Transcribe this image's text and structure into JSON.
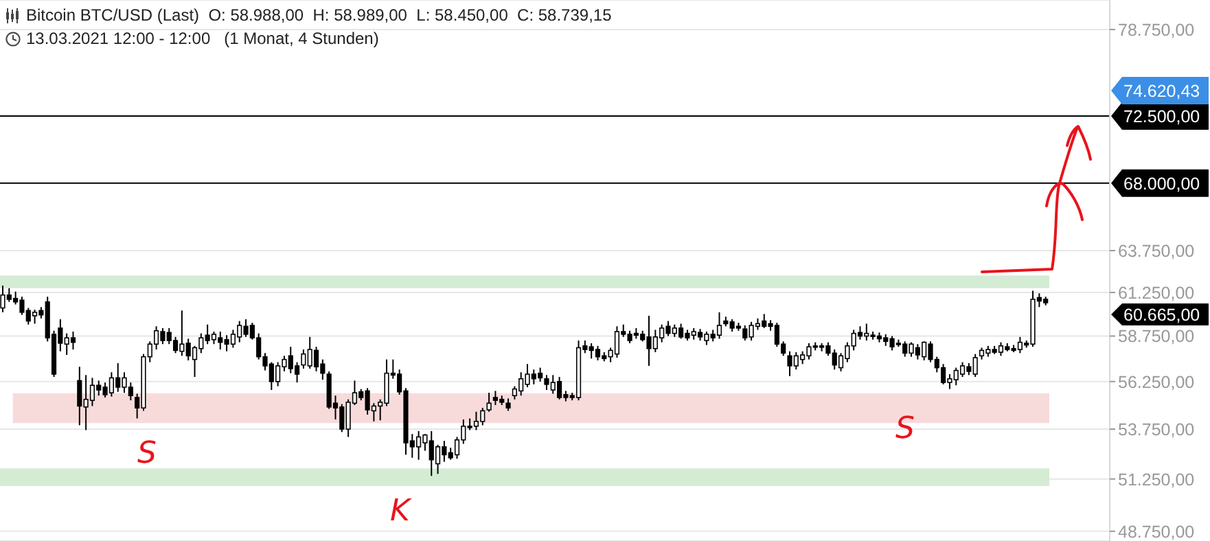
{
  "chart_data": {
    "type": "candlestick",
    "title": "Bitcoin BTC/USD (Last)  O: 58.988,00  H: 58.989,00  L: 58.450,00  C: 58.739,15",
    "subtitle": "13.03.2021 12:00 - 12:00   (1 Monat, 4 Stunden)",
    "color": "#000000",
    "log": true,
    "grid": "y",
    "ylim": [
      48300,
      81000
    ],
    "yticks": [
      {
        "value": 78750,
        "label": "78.750,00"
      },
      {
        "value": 63750,
        "label": "63.750,00"
      },
      {
        "value": 61250,
        "label": "61.250,00"
      },
      {
        "value": 58750,
        "label": "58.750,00"
      },
      {
        "value": 56250,
        "label": "56.250,00"
      },
      {
        "value": 53750,
        "label": "53.750,00"
      },
      {
        "value": 51250,
        "label": "51.250,00"
      },
      {
        "value": 48750,
        "label": "48.750,00"
      }
    ],
    "ref_lines": [
      {
        "axis": "y",
        "value": 72500,
        "label": "72.500,00",
        "color": "#000000"
      },
      {
        "axis": "y",
        "value": 68000,
        "label": "68.000,00",
        "color": "#000000"
      }
    ],
    "bands": [
      {
        "axis": "y",
        "from": 61500,
        "to": 62250,
        "color": "#d4ecd4"
      },
      {
        "axis": "y",
        "from": 54060,
        "to": 55630,
        "color": "#f7dbdb"
      },
      {
        "axis": "y",
        "from": 50900,
        "to": 51770,
        "color": "#d4ecd4"
      }
    ],
    "annotations": [
      "74.620,43",
      "60.665,00",
      "S",
      "K",
      "S"
    ],
    "categories": [
      null,
      null,
      null,
      null,
      null,
      null,
      null,
      null,
      null,
      null,
      null,
      null,
      null,
      null,
      null,
      null,
      null,
      null,
      null,
      null,
      null,
      null,
      null,
      null,
      null,
      null,
      null,
      null,
      null,
      null,
      null,
      null,
      null,
      null,
      null,
      null,
      null,
      null,
      null,
      null,
      null,
      null,
      null,
      null,
      null,
      null,
      null,
      null,
      null,
      null,
      null,
      null,
      null,
      null,
      null,
      null,
      null,
      null,
      null,
      null,
      null,
      null,
      null,
      null,
      null,
      null,
      null,
      null,
      null,
      null,
      null,
      null,
      null,
      null,
      null,
      null,
      null,
      null,
      null,
      null,
      null,
      null,
      null,
      null,
      null,
      null,
      null,
      null,
      null,
      null,
      null,
      null,
      null,
      null,
      null,
      null,
      null,
      null,
      null,
      null,
      null,
      null,
      null,
      null,
      null,
      null,
      null,
      null,
      null,
      null,
      null,
      null,
      null,
      null,
      null,
      null,
      null,
      null,
      null,
      null,
      null,
      null,
      null,
      null,
      null,
      null,
      null,
      null,
      null,
      null,
      null,
      null,
      null,
      null,
      null,
      null,
      null,
      null,
      null,
      null,
      null,
      null,
      null,
      null,
      null,
      null,
      null,
      null,
      null,
      null,
      null,
      null,
      null,
      null,
      null,
      null,
      null,
      null,
      null,
      null,
      null,
      null,
      null,
      null
    ],
    "ohlc": [
      [
        60350,
        61650,
        60100,
        61100
      ],
      [
        61100,
        61500,
        60700,
        60850
      ],
      [
        60900,
        61300,
        60550,
        60700
      ],
      [
        60800,
        61000,
        59950,
        60100
      ],
      [
        60200,
        60350,
        59400,
        59600
      ],
      [
        59900,
        60250,
        59450,
        60100
      ],
      [
        60200,
        60400,
        59750,
        59950
      ],
      [
        60700,
        61000,
        58450,
        58650
      ],
      [
        58850,
        59050,
        56500,
        56650
      ],
      [
        59200,
        59700,
        57900,
        58350
      ],
      [
        58300,
        58900,
        57700,
        58650
      ],
      [
        58650,
        59000,
        58000,
        58400
      ],
      [
        56300,
        57050,
        53950,
        54950
      ],
      [
        54900,
        56600,
        53700,
        55300
      ],
      [
        55250,
        56450,
        54950,
        56050
      ],
      [
        56050,
        56300,
        55500,
        55800
      ],
      [
        55950,
        56200,
        55400,
        55550
      ],
      [
        55650,
        56750,
        55450,
        56450
      ],
      [
        56450,
        57250,
        55700,
        55950
      ],
      [
        55950,
        56750,
        55650,
        56450
      ],
      [
        55950,
        56200,
        55250,
        55500
      ],
      [
        55400,
        55600,
        54300,
        54850
      ],
      [
        54850,
        57750,
        54700,
        57600
      ],
      [
        57600,
        58450,
        57300,
        58300
      ],
      [
        58300,
        59300,
        58000,
        59050
      ],
      [
        59000,
        59200,
        58300,
        58500
      ],
      [
        58950,
        59200,
        58300,
        58500
      ],
      [
        58500,
        58700,
        57800,
        57950
      ],
      [
        57900,
        60200,
        57650,
        58300
      ],
      [
        58350,
        58600,
        57400,
        57650
      ],
      [
        57450,
        58200,
        56500,
        58100
      ],
      [
        58050,
        58900,
        57800,
        58650
      ],
      [
        58800,
        59400,
        58300,
        58500
      ],
      [
        58550,
        59000,
        58300,
        58850
      ],
      [
        58650,
        59000,
        58000,
        58400
      ],
      [
        58550,
        58800,
        57900,
        58300
      ],
      [
        58300,
        59100,
        58100,
        58850
      ],
      [
        58700,
        59600,
        58400,
        59350
      ],
      [
        59300,
        59700,
        58700,
        58850
      ],
      [
        59350,
        59500,
        58550,
        58650
      ],
      [
        58650,
        58900,
        57450,
        57600
      ],
      [
        57600,
        57800,
        56850,
        57100
      ],
      [
        57200,
        57300,
        55800,
        56250
      ],
      [
        56250,
        57300,
        56000,
        57100
      ],
      [
        57050,
        57650,
        56800,
        57450
      ],
      [
        57650,
        58150,
        56700,
        56950
      ],
      [
        57100,
        57300,
        56200,
        56650
      ],
      [
        57150,
        58000,
        56950,
        57750
      ],
      [
        57100,
        58700,
        56950,
        58000
      ],
      [
        57950,
        58150,
        56800,
        57050
      ],
      [
        57200,
        57450,
        56350,
        56700
      ],
      [
        56650,
        56800,
        54800,
        54900
      ],
      [
        55100,
        55500,
        54250,
        54850
      ],
      [
        54900,
        55050,
        53600,
        53750
      ],
      [
        53750,
        55300,
        53350,
        55150
      ],
      [
        55100,
        56300,
        55000,
        55650
      ],
      [
        55700,
        55850,
        55250,
        55400
      ],
      [
        55750,
        55900,
        54500,
        54750
      ],
      [
        54700,
        55100,
        54150,
        54950
      ],
      [
        54950,
        55300,
        54200,
        55150
      ],
      [
        55100,
        57450,
        54950,
        56700
      ],
      [
        56700,
        57450,
        56400,
        56600
      ],
      [
        56650,
        56900,
        55550,
        55700
      ],
      [
        55750,
        55900,
        52450,
        53050
      ],
      [
        53150,
        53500,
        52300,
        52850
      ],
      [
        52850,
        53650,
        52200,
        53350
      ],
      [
        53050,
        53500,
        52650,
        53450
      ],
      [
        53150,
        53650,
        51400,
        52200
      ],
      [
        52000,
        52950,
        51500,
        52850
      ],
      [
        52850,
        53150,
        52100,
        52450
      ],
      [
        52550,
        52800,
        52200,
        52300
      ],
      [
        52450,
        53350,
        52250,
        53200
      ],
      [
        53200,
        54250,
        53000,
        53900
      ],
      [
        53900,
        54300,
        53700,
        53850
      ],
      [
        53900,
        54650,
        53700,
        54150
      ],
      [
        54150,
        54850,
        53950,
        54700
      ],
      [
        54750,
        55650,
        54650,
        55100
      ],
      [
        55400,
        55750,
        55000,
        55250
      ],
      [
        55300,
        55500,
        55000,
        55150
      ],
      [
        55100,
        55350,
        54700,
        54850
      ],
      [
        55500,
        56000,
        55300,
        55850
      ],
      [
        55750,
        56750,
        55500,
        56400
      ],
      [
        56100,
        57200,
        55950,
        56650
      ],
      [
        56650,
        56900,
        56100,
        56400
      ],
      [
        56700,
        57000,
        56250,
        56450
      ],
      [
        56400,
        56600,
        55800,
        56100
      ],
      [
        55800,
        56600,
        55600,
        56200
      ],
      [
        56250,
        56500,
        55300,
        55400
      ],
      [
        55550,
        55750,
        55200,
        55400
      ],
      [
        55500,
        55650,
        55250,
        55400
      ],
      [
        55400,
        58500,
        55250,
        58100
      ],
      [
        58200,
        58500,
        57800,
        58000
      ],
      [
        58150,
        58350,
        57500,
        57950
      ],
      [
        58000,
        58200,
        57400,
        57600
      ],
      [
        57650,
        57850,
        57350,
        57500
      ],
      [
        57600,
        58100,
        57300,
        57950
      ],
      [
        57750,
        59300,
        57550,
        59000
      ],
      [
        59000,
        59400,
        58700,
        58850
      ],
      [
        58850,
        59050,
        58350,
        58500
      ],
      [
        58900,
        59200,
        58600,
        58800
      ],
      [
        58850,
        59050,
        58450,
        58550
      ],
      [
        58700,
        59900,
        57100,
        58050
      ],
      [
        58050,
        59100,
        57850,
        58700
      ],
      [
        58650,
        59400,
        58400,
        59200
      ],
      [
        59300,
        59600,
        58750,
        58900
      ],
      [
        58900,
        59400,
        58700,
        59200
      ],
      [
        59200,
        59450,
        58600,
        58700
      ],
      [
        58900,
        59100,
        58500,
        58650
      ],
      [
        58800,
        59200,
        58550,
        59000
      ],
      [
        58950,
        59150,
        58500,
        58700
      ],
      [
        58500,
        59000,
        58250,
        58850
      ],
      [
        58850,
        59100,
        58450,
        58650
      ],
      [
        58800,
        60100,
        58600,
        59350
      ],
      [
        59600,
        59850,
        59300,
        59450
      ],
      [
        59550,
        59700,
        59000,
        59200
      ],
      [
        59300,
        59500,
        59050,
        59200
      ],
      [
        59150,
        59350,
        58500,
        58650
      ],
      [
        58700,
        59550,
        58500,
        59350
      ],
      [
        59300,
        59750,
        59100,
        59450
      ],
      [
        59600,
        60000,
        59200,
        59300
      ],
      [
        59450,
        59650,
        59050,
        59300
      ],
      [
        59350,
        59500,
        58150,
        58300
      ],
      [
        58300,
        58450,
        57650,
        57800
      ],
      [
        57650,
        57900,
        56550,
        57100
      ],
      [
        57100,
        57850,
        56900,
        57650
      ],
      [
        57450,
        57900,
        57200,
        57700
      ],
      [
        57650,
        58350,
        57450,
        58150
      ],
      [
        58200,
        58400,
        57950,
        58150
      ],
      [
        58200,
        58350,
        57900,
        58150
      ],
      [
        58200,
        58400,
        57650,
        57800
      ],
      [
        57800,
        58000,
        56900,
        57150
      ],
      [
        57000,
        57800,
        56800,
        57650
      ],
      [
        57500,
        58400,
        57300,
        58200
      ],
      [
        58200,
        59100,
        57950,
        58900
      ],
      [
        58950,
        59300,
        58550,
        58750
      ],
      [
        58750,
        59450,
        58500,
        58900
      ],
      [
        58800,
        59000,
        58550,
        58750
      ],
      [
        58750,
        58950,
        58400,
        58600
      ],
      [
        58650,
        58850,
        58200,
        58450
      ],
      [
        58600,
        58750,
        57950,
        58150
      ],
      [
        58350,
        58550,
        58150,
        58300
      ],
      [
        58300,
        58450,
        57600,
        57800
      ],
      [
        57800,
        58400,
        57600,
        58300
      ],
      [
        58100,
        58300,
        57450,
        57700
      ],
      [
        57600,
        58450,
        57400,
        58400
      ],
      [
        58300,
        58450,
        57300,
        57450
      ],
      [
        57450,
        57600,
        56750,
        57000
      ],
      [
        57000,
        57200,
        56100,
        56200
      ],
      [
        56200,
        56650,
        55850,
        56400
      ],
      [
        56350,
        57000,
        56050,
        56850
      ],
      [
        56650,
        57300,
        56500,
        57100
      ],
      [
        57050,
        57250,
        56600,
        56800
      ],
      [
        56650,
        57750,
        56500,
        57550
      ],
      [
        57650,
        58100,
        57450,
        57950
      ],
      [
        57800,
        58200,
        57600,
        58000
      ],
      [
        58000,
        58200,
        57750,
        57850
      ],
      [
        57850,
        58400,
        57650,
        58200
      ],
      [
        58150,
        58350,
        57900,
        58000
      ],
      [
        58050,
        58250,
        57850,
        57950
      ],
      [
        58000,
        58700,
        57800,
        58400
      ],
      [
        58350,
        58500,
        58100,
        58250
      ],
      [
        58300,
        61350,
        58150,
        60850
      ],
      [
        60950,
        61200,
        60400,
        60750
      ],
      [
        60850,
        61000,
        60500,
        60650
      ]
    ]
  }
}
